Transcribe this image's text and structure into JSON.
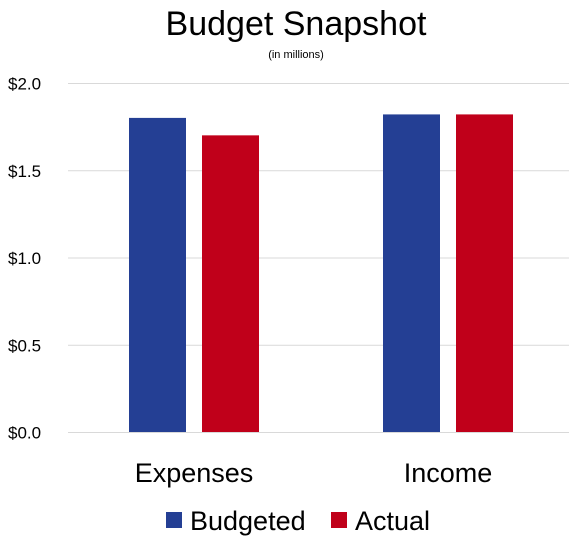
{
  "chart_data": {
    "type": "bar",
    "title": "Budget Snapshot",
    "subtitle": "(in millions)",
    "categories": [
      "Expenses",
      "Income"
    ],
    "series": [
      {
        "name": "Budgeted",
        "values": [
          1.8,
          1.82
        ],
        "color": "#243f94"
      },
      {
        "name": "Actual",
        "values": [
          1.7,
          1.82
        ],
        "color": "#c0001a"
      }
    ],
    "ylim": [
      0,
      2.0
    ],
    "yticks": [
      {
        "value": 0.0,
        "label": "$0.0"
      },
      {
        "value": 0.5,
        "label": "$0.5"
      },
      {
        "value": 1.0,
        "label": "$1.0"
      },
      {
        "value": 1.5,
        "label": "$1.5"
      },
      {
        "value": 2.0,
        "label": "$2.0"
      }
    ],
    "grid": true,
    "legend_position": "bottom",
    "xlabel": "",
    "ylabel": ""
  }
}
